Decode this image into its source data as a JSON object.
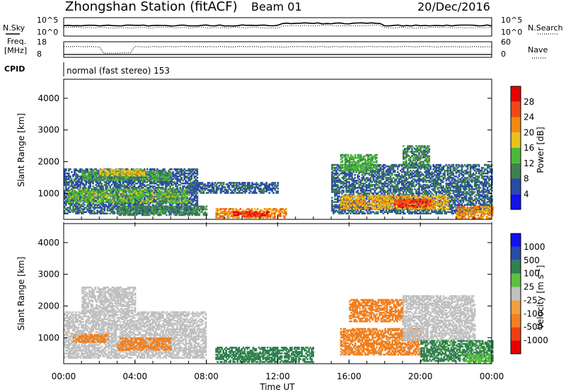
{
  "header": {
    "station": "Zhongshan Station (fitACF)",
    "beam": "Beam 01",
    "date": "20/Dec/2016"
  },
  "top_panels": {
    "nsky_label": "N.Sky",
    "nsky_ticks": [
      "10^5",
      "10^0"
    ],
    "nsearch_label": "N.Search",
    "nsearch_ticks": [
      "10^5",
      "10^0"
    ],
    "freq_label": "Freq.",
    "freq_unit": "[MHz]",
    "freq_ticks": [
      "18",
      "8"
    ],
    "nave_label": "Nave",
    "nave_ticks": [
      "60",
      "0"
    ],
    "cpid_label": "CPID",
    "cpid_text": "normal (fast stereo) 153"
  },
  "colors": {
    "power_scale": [
      "#1111ee",
      "#2a4aa8",
      "#3f8050",
      "#4cb83a",
      "#e8c21a",
      "#f08a10",
      "#f04818",
      "#e80000"
    ],
    "velocity_scale": [
      "#e80000",
      "#ee3f10",
      "#f08020",
      "#f0a040",
      "#c0c0c0",
      "#5cc040",
      "#308050",
      "#2a4aa8",
      "#1111ee"
    ]
  },
  "chart_data": [
    {
      "type": "heatmap",
      "panel": "power",
      "ylabel": "Slant Range [km]",
      "ytick_labels": [
        "1000",
        "2000",
        "3000",
        "4000"
      ],
      "yticks": [
        1000,
        2000,
        3000,
        4000
      ],
      "ylim": [
        180,
        4600
      ],
      "xlim_hours": [
        0,
        24
      ],
      "colorbar": {
        "label": "Power [dB]",
        "tick_labels": [
          "4",
          "8",
          "12",
          "16",
          "20",
          "24",
          "28"
        ],
        "bounds": [
          0,
          4,
          8,
          12,
          16,
          20,
          24,
          28,
          32
        ]
      },
      "regions": [
        {
          "t": [
            0.0,
            7.5
          ],
          "r": [
            350,
            1750
          ],
          "val": 7
        },
        {
          "t": [
            0.2,
            7.0
          ],
          "r": [
            700,
            1150
          ],
          "val": 14
        },
        {
          "t": [
            1.0,
            6.0
          ],
          "r": [
            1400,
            1700
          ],
          "val": 12
        },
        {
          "t": [
            2.0,
            4.5
          ],
          "r": [
            1550,
            1750
          ],
          "val": 18
        },
        {
          "t": [
            3.0,
            8.0
          ],
          "r": [
            300,
            600
          ],
          "val": 10
        },
        {
          "t": [
            8.5,
            12.5
          ],
          "r": [
            220,
            520
          ],
          "val": 22
        },
        {
          "t": [
            9.5,
            11.5
          ],
          "r": [
            250,
            400
          ],
          "val": 28
        },
        {
          "t": [
            7.0,
            12.0
          ],
          "r": [
            1000,
            1350
          ],
          "val": 7
        },
        {
          "t": [
            15.0,
            24.0
          ],
          "r": [
            350,
            1900
          ],
          "val": 8
        },
        {
          "t": [
            15.5,
            21.5
          ],
          "r": [
            500,
            950
          ],
          "val": 20
        },
        {
          "t": [
            18.5,
            20.5
          ],
          "r": [
            550,
            800
          ],
          "val": 27
        },
        {
          "t": [
            15.5,
            17.5
          ],
          "r": [
            1700,
            2200
          ],
          "val": 13
        },
        {
          "t": [
            19.0,
            20.5
          ],
          "r": [
            1800,
            2500
          ],
          "val": 10
        },
        {
          "t": [
            22.0,
            24.0
          ],
          "r": [
            200,
            600
          ],
          "val": 22
        }
      ]
    },
    {
      "type": "heatmap",
      "panel": "velocity",
      "ylabel": "Slant Range [km]",
      "ytick_labels": [
        "1000",
        "2000",
        "3000",
        "4000"
      ],
      "yticks": [
        1000,
        2000,
        3000,
        4000
      ],
      "ylim": [
        180,
        4600
      ],
      "xlim_hours": [
        0,
        24
      ],
      "xlabel": "Time UT",
      "xtick_labels": [
        "00:00",
        "04:00",
        "08:00",
        "12:00",
        "16:00",
        "20:00",
        "00:00"
      ],
      "xticks_hours": [
        0,
        4,
        8,
        12,
        16,
        20,
        24
      ],
      "colorbar": {
        "label": "Velocity [m s^-1]",
        "tick_labels": [
          "-1000",
          "-500",
          "-100",
          "-25",
          "25",
          "100",
          "500",
          "1000"
        ],
        "bounds": [
          -1500,
          -1000,
          -500,
          -100,
          -25,
          25,
          100,
          500,
          1000,
          1500
        ]
      },
      "regions": [
        {
          "t": [
            0.0,
            8.0
          ],
          "r": [
            350,
            1800
          ],
          "val": 0
        },
        {
          "t": [
            1.0,
            4.0
          ],
          "r": [
            1800,
            2600
          ],
          "val": 0
        },
        {
          "t": [
            0.5,
            2.5
          ],
          "r": [
            850,
            1100
          ],
          "val": -300
        },
        {
          "t": [
            3.0,
            6.0
          ],
          "r": [
            600,
            1000
          ],
          "val": -300
        },
        {
          "t": [
            8.5,
            14.0
          ],
          "r": [
            220,
            700
          ],
          "val": 300
        },
        {
          "t": [
            10.0,
            11.5
          ],
          "r": [
            300,
            550
          ],
          "val": 150
        },
        {
          "t": [
            15.5,
            20.0
          ],
          "r": [
            450,
            1300
          ],
          "val": -300
        },
        {
          "t": [
            16.0,
            19.0
          ],
          "r": [
            1500,
            2200
          ],
          "val": -300
        },
        {
          "t": [
            19.0,
            23.0
          ],
          "r": [
            900,
            2300
          ],
          "val": 0
        },
        {
          "t": [
            20.0,
            24.0
          ],
          "r": [
            250,
            900
          ],
          "val": 150
        },
        {
          "t": [
            22.5,
            24.0
          ],
          "r": [
            200,
            500
          ],
          "val": 60
        }
      ]
    }
  ]
}
